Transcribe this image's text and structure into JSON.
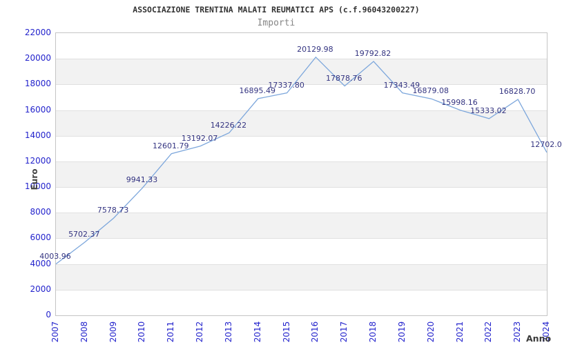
{
  "header": {
    "title": "ASSOCIAZIONE TRENTINA MALATI REUMATICI APS (c.f.96043200227)",
    "subtitle": "Importi"
  },
  "chart_data": {
    "type": "line",
    "title": "ASSOCIAZIONE TRENTINA MALATI REUMATICI APS (c.f.96043200227)",
    "subtitle": "Importi",
    "xlabel": "Anno",
    "ylabel": "Euro",
    "categories": [
      "2007",
      "2008",
      "2009",
      "2010",
      "2011",
      "2012",
      "2013",
      "2014",
      "2015",
      "2016",
      "2017",
      "2018",
      "2019",
      "2020",
      "2021",
      "2022",
      "2023",
      "2024"
    ],
    "series": [
      {
        "name": "Importi",
        "values": [
          4003.96,
          5702.37,
          7578.73,
          9941.33,
          12601.79,
          13192.07,
          14226.22,
          16895.49,
          17337.8,
          20129.98,
          17878.76,
          19792.82,
          17343.49,
          16879.08,
          15998.16,
          15333.02,
          16828.7,
          12702.0
        ]
      }
    ],
    "point_labels": [
      "4003.96",
      "5702.37",
      "7578.73",
      "9941.33",
      "12601.79",
      "13192.07",
      "14226.22",
      "16895.49",
      "17337.80",
      "20129.98",
      "17878.76",
      "19792.82",
      "17343.49",
      "16879.08",
      "15998.16",
      "15333.02",
      "16828.70",
      "12702.0"
    ],
    "ylim": [
      0,
      22000
    ],
    "ytick_step": 2000,
    "grid": "horizontal gridlines with alternating gray bands",
    "legend": "none",
    "colors": {
      "line": "#7da7dc",
      "point_label": "#333380",
      "tick_label": "#2222cc",
      "band_gray": "#f2f2f2",
      "gridline": "#e0e0e0",
      "plot_border": "#c4c4c4",
      "title": "#333333",
      "subtitle": "#858585",
      "axis_title": "#3a3a3a",
      "background": "#ffffff"
    }
  }
}
